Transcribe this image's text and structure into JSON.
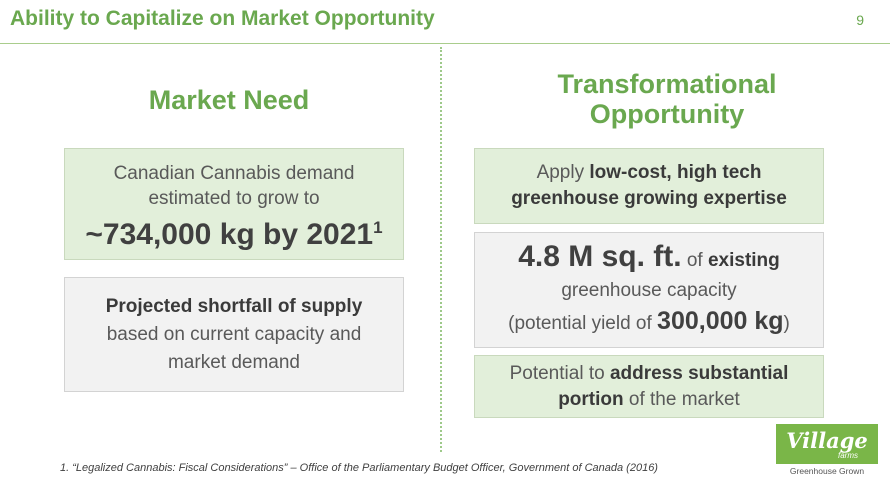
{
  "header": {
    "title": "Ability to Capitalize on Market Opportunity",
    "page_number": "9"
  },
  "left": {
    "heading": "Market Need",
    "box1": {
      "line1": "Canadian Cannabis demand",
      "line2": "estimated to grow to",
      "big": "~734,000 kg by 2021",
      "sup": "1"
    },
    "box2": {
      "bold": "Projected shortfall of supply",
      "line2": "based on current capacity and",
      "line3": "market demand"
    }
  },
  "right": {
    "heading_line1": "Transformational",
    "heading_line2": "Opportunity",
    "box1": {
      "pre": "Apply ",
      "bold1": "low-cost, high tech",
      "bold2": "greenhouse growing expertise"
    },
    "box2": {
      "big": "4.8 M sq. ft.",
      "mid": " of ",
      "bold": "existing",
      "line2": "greenhouse capacity",
      "line3_pre": "(potential yield of ",
      "line3_big": "300,000 kg",
      "line3_post": ")"
    },
    "box3": {
      "pre": "Potential to ",
      "bold1": "address substantial",
      "bold2": "portion",
      "post": " of the market"
    }
  },
  "footnote": "1. “Legalized Cannabis: Fiscal Considerations” – Office of the Parliamentary Budget Officer, Government of Canada (2016)",
  "logo": {
    "word": "Village",
    "sub": "farms",
    "tagline": "Greenhouse Grown"
  },
  "colors": {
    "accent": "#6aa84f",
    "box_green": "#e2efda",
    "box_gray": "#f2f2f2"
  }
}
